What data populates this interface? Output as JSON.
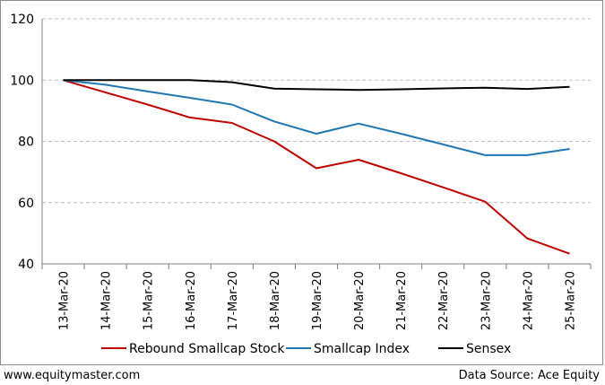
{
  "chart_data": {
    "type": "line",
    "categories": [
      "13-Mar-20",
      "14-Mar-20",
      "15-Mar-20",
      "16-Mar-20",
      "17-Mar-20",
      "18-Mar-20",
      "19-Mar-20",
      "20-Mar-20",
      "21-Mar-20",
      "22-Mar-20",
      "23-Mar-20",
      "24-Mar-20",
      "25-Mar-20"
    ],
    "series": [
      {
        "name": "Rebound Smallcap Stock",
        "color": "#c00000",
        "values": [
          100,
          96,
          92,
          87.8,
          86,
          80,
          71.2,
          74,
          69.6,
          65,
          60.3,
          48.3,
          43.3
        ]
      },
      {
        "name": "Smallcap Index",
        "color": "#1f77b4",
        "values": [
          100,
          98.5,
          96.3,
          94.2,
          92,
          86.5,
          82.5,
          85.8,
          82.5,
          79,
          75.5,
          75.5,
          77.5
        ]
      },
      {
        "name": "Sensex",
        "color": "#000000",
        "values": [
          100,
          100,
          100,
          100,
          99.3,
          97.2,
          97,
          96.8,
          97,
          97.3,
          97.5,
          97.1,
          97.8
        ]
      }
    ],
    "ylim": [
      40,
      120
    ],
    "yticks": [
      40,
      60,
      80,
      100,
      120
    ],
    "grid": true,
    "legend_position": "bottom"
  },
  "footer": {
    "website": "www.equitymaster.com",
    "source": "Data Source: Ace Equity"
  }
}
